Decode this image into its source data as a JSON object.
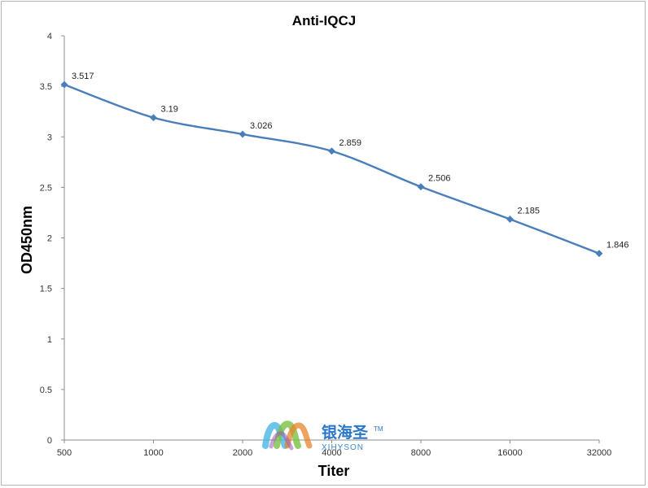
{
  "chart_data": {
    "type": "line",
    "title": "Anti-IQCJ",
    "xlabel": "Titer",
    "ylabel": "OD450nm",
    "categories": [
      "500",
      "1000",
      "2000",
      "4000",
      "8000",
      "16000",
      "32000"
    ],
    "series": [
      {
        "values": [
          3.517,
          3.19,
          3.026,
          2.859,
          2.506,
          2.185,
          1.846
        ]
      }
    ],
    "data_labels": [
      "3.517",
      "3.19",
      "3.026",
      "2.859",
      "2.506",
      "2.185",
      "1.846"
    ],
    "yticks": [
      "0",
      "0.5",
      "1",
      "1.5",
      "2",
      "2.5",
      "3",
      "3.5",
      "4"
    ],
    "ylim": [
      0,
      4
    ],
    "grid": false,
    "legend": "none",
    "line_color": "#4a7ebb",
    "marker": "diamond"
  },
  "watermark": {
    "logo_text": "银海圣",
    "tm": "TM",
    "subtext": "XIHYSON"
  }
}
